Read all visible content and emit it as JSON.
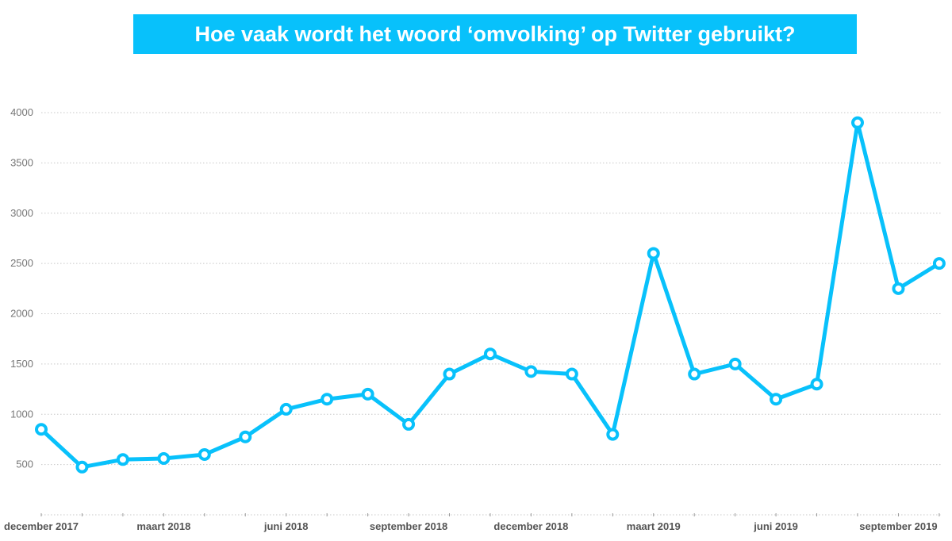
{
  "chart_data": {
    "type": "line",
    "title": "Hoe vaak wordt het woord ‘omvolking’ op Twitter gebruikt?",
    "xlabel": "",
    "ylabel": "",
    "ylim": [
      0,
      4000
    ],
    "yticks": [
      "500",
      "1000",
      "1500",
      "2000",
      "2500",
      "3000",
      "3500",
      "4000"
    ],
    "ytick_values": [
      500,
      1000,
      1500,
      2000,
      2500,
      3000,
      3500,
      4000
    ],
    "x": [
      "2017-12",
      "2018-01",
      "2018-02",
      "2018-03",
      "2018-04",
      "2018-05",
      "2018-06",
      "2018-07",
      "2018-08",
      "2018-09",
      "2018-10",
      "2018-11",
      "2018-12",
      "2019-01",
      "2019-02",
      "2019-03",
      "2019-04",
      "2019-05",
      "2019-06",
      "2019-07",
      "2019-08",
      "2019-09",
      "2019-10"
    ],
    "xtick_labels": [
      {
        "index": 0,
        "label": "december 2017"
      },
      {
        "index": 3,
        "label": "maart 2018"
      },
      {
        "index": 6,
        "label": "juni 2018"
      },
      {
        "index": 9,
        "label": "september 2018"
      },
      {
        "index": 12,
        "label": "december 2018"
      },
      {
        "index": 15,
        "label": "maart 2019"
      },
      {
        "index": 18,
        "label": "juni 2019"
      },
      {
        "index": 21,
        "label": "september 2019"
      }
    ],
    "series": [
      {
        "name": "omvolking",
        "color": "#08c1fb",
        "values": [
          850,
          475,
          550,
          560,
          600,
          775,
          1050,
          1150,
          1200,
          900,
          1400,
          1600,
          1425,
          1400,
          800,
          2600,
          1400,
          1500,
          1150,
          1300,
          3900,
          2250,
          2500
        ]
      }
    ],
    "grid": true,
    "legend": "none"
  }
}
